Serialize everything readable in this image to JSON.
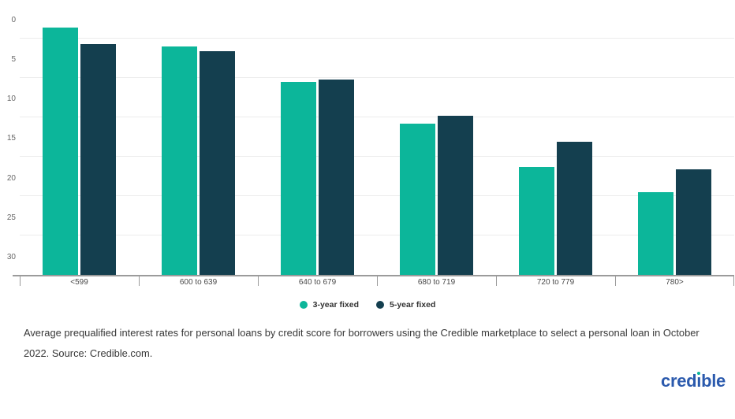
{
  "chart_data": {
    "type": "bar",
    "categories": [
      "<599",
      "600 to 639",
      "640 to 679",
      "680 to 719",
      "720 to 779",
      "780>"
    ],
    "series": [
      {
        "name": "3-year fixed",
        "color": "#0cb69a",
        "values": [
          31.3,
          28.9,
          24.4,
          19.1,
          13.7,
          10.5
        ]
      },
      {
        "name": "5-year fixed",
        "color": "#143f4f",
        "values": [
          29.2,
          28.3,
          24.7,
          20.1,
          16.9,
          13.4
        ]
      }
    ],
    "title": "",
    "xlabel": "",
    "ylabel": "",
    "ylim": [
      0,
      34
    ],
    "yticks": [
      0,
      5,
      10,
      15,
      20,
      25,
      30
    ],
    "grid": true,
    "legend_position": "bottom",
    "bar_colors": {
      "teal": "#0cb69a",
      "dark_navy": "#143f4f"
    },
    "gridline_color": "#ececec",
    "axis_color": "#9b9b9b"
  },
  "legend": {
    "items": [
      {
        "label": "3-year fixed",
        "color": "#0cb69a"
      },
      {
        "label": "5-year fixed",
        "color": "#143f4f"
      }
    ]
  },
  "caption": {
    "line1": "Average prequalified interest rates for personal loans by credit score for borrowers using the Credible marketplace to select a personal loan in October",
    "line2": "2022. Source: Credible.com."
  },
  "logo": {
    "part1": "cred",
    "dotless_i": "ı",
    "part2": "ble",
    "text_color": "#2b5aad",
    "dot_color": "#0cb69a"
  }
}
